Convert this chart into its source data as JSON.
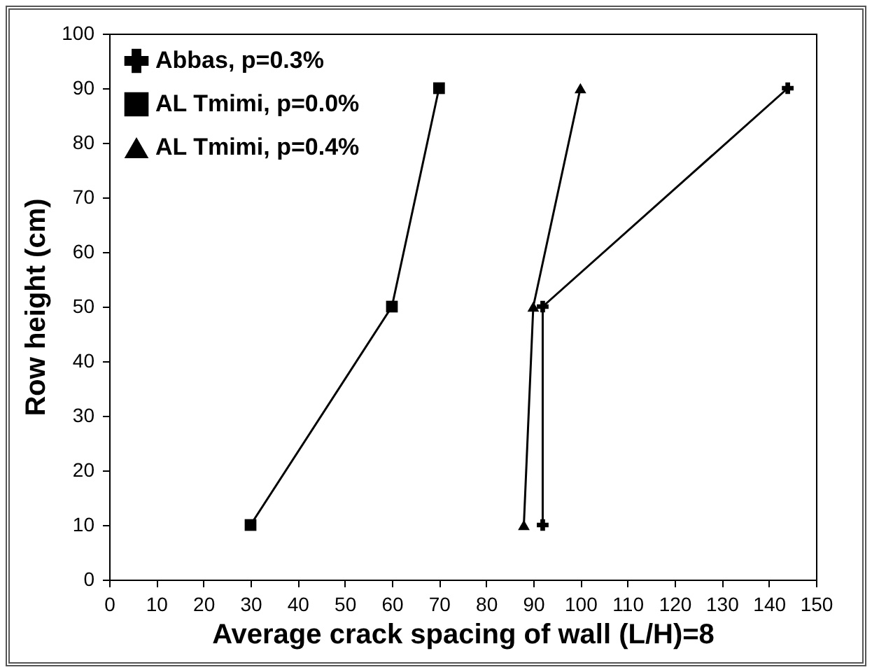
{
  "chart_data": {
    "type": "line",
    "xlabel": "Average crack spacing of wall (L/H)=8",
    "ylabel": "Row height (cm)",
    "xlim": [
      0,
      150
    ],
    "xticks": [
      0,
      10,
      20,
      30,
      40,
      50,
      60,
      70,
      80,
      90,
      100,
      110,
      120,
      130,
      140,
      150
    ],
    "ylim": [
      0,
      100
    ],
    "yticks": [
      0,
      10,
      20,
      30,
      40,
      50,
      60,
      70,
      80,
      90,
      100
    ],
    "grid": false,
    "legend": "top left",
    "line_style": "solid",
    "series": [
      {
        "name": "Abbas, p=0.3%",
        "color": "#000000",
        "marker": "cross",
        "x": [
          92,
          92,
          144
        ],
        "values": [
          10,
          50,
          90
        ]
      },
      {
        "name": "AL Tmimi, p=0.0%",
        "color": "#000000",
        "marker": "square",
        "x": [
          30,
          60,
          70
        ],
        "values": [
          10,
          50,
          90
        ]
      },
      {
        "name": "AL Tmimi, p=0.4%",
        "color": "#000000",
        "marker": "triangle",
        "x": [
          88,
          90,
          100
        ],
        "values": [
          10,
          50,
          90
        ]
      }
    ]
  }
}
